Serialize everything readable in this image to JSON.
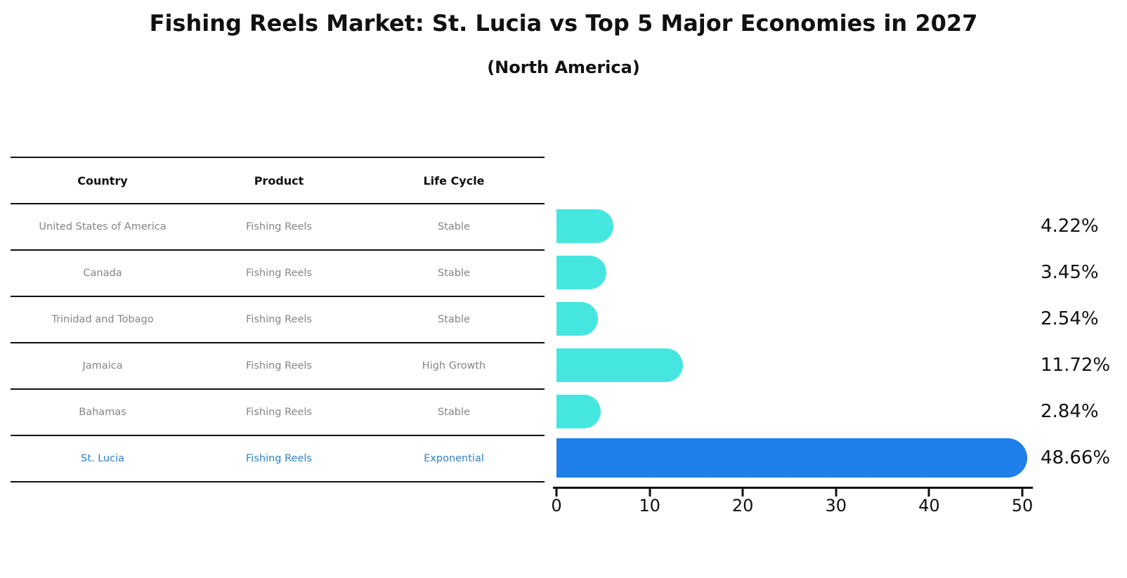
{
  "title": "Fishing Reels Market: St. Lucia vs Top 5 Major Economies in 2027",
  "subtitle": "(North America)",
  "table": {
    "headers": [
      "Country",
      "Product",
      "Life Cycle"
    ],
    "rows": [
      {
        "country": "United States of America",
        "product": "Fishing Reels",
        "life_cycle": "Stable"
      },
      {
        "country": "Canada",
        "product": "Fishing Reels",
        "life_cycle": "Stable"
      },
      {
        "country": "Trinidad and Tobago",
        "product": "Fishing Reels",
        "life_cycle": "Stable"
      },
      {
        "country": "Jamaica",
        "product": "Fishing Reels",
        "life_cycle": "High Growth"
      },
      {
        "country": "Bahamas",
        "product": "Fishing Reels",
        "life_cycle": "Stable"
      },
      {
        "country": "St. Lucia",
        "product": "Fishing Reels",
        "life_cycle": "Exponential"
      }
    ]
  },
  "chart_data": {
    "type": "bar",
    "orientation": "horizontal",
    "categories": [
      "United States of America",
      "Canada",
      "Trinidad and Tobago",
      "Jamaica",
      "Bahamas",
      "St. Lucia"
    ],
    "values": [
      4.22,
      3.45,
      2.54,
      11.72,
      2.84,
      48.66
    ],
    "labels": [
      "4.22%",
      "3.45%",
      "2.54%",
      "11.72%",
      "2.84%",
      "48.66%"
    ],
    "xlim": [
      0,
      50
    ],
    "xticks": [
      0,
      10,
      20,
      30,
      40,
      50
    ],
    "grid": false,
    "legend": false,
    "bar_color": "#46E6E0",
    "highlight_color": "#1F7FEB",
    "highlight_index": 5,
    "highlight_category": "St. Lucia",
    "value_suffix": "%"
  },
  "colors": {
    "background": "#FFFFFF",
    "bar_cyan": "#46E6E0",
    "bar_blue": "#1F7FEB",
    "highlight_text": "#2E83C5",
    "table_text": "#858585",
    "heading_text": "#111111"
  }
}
